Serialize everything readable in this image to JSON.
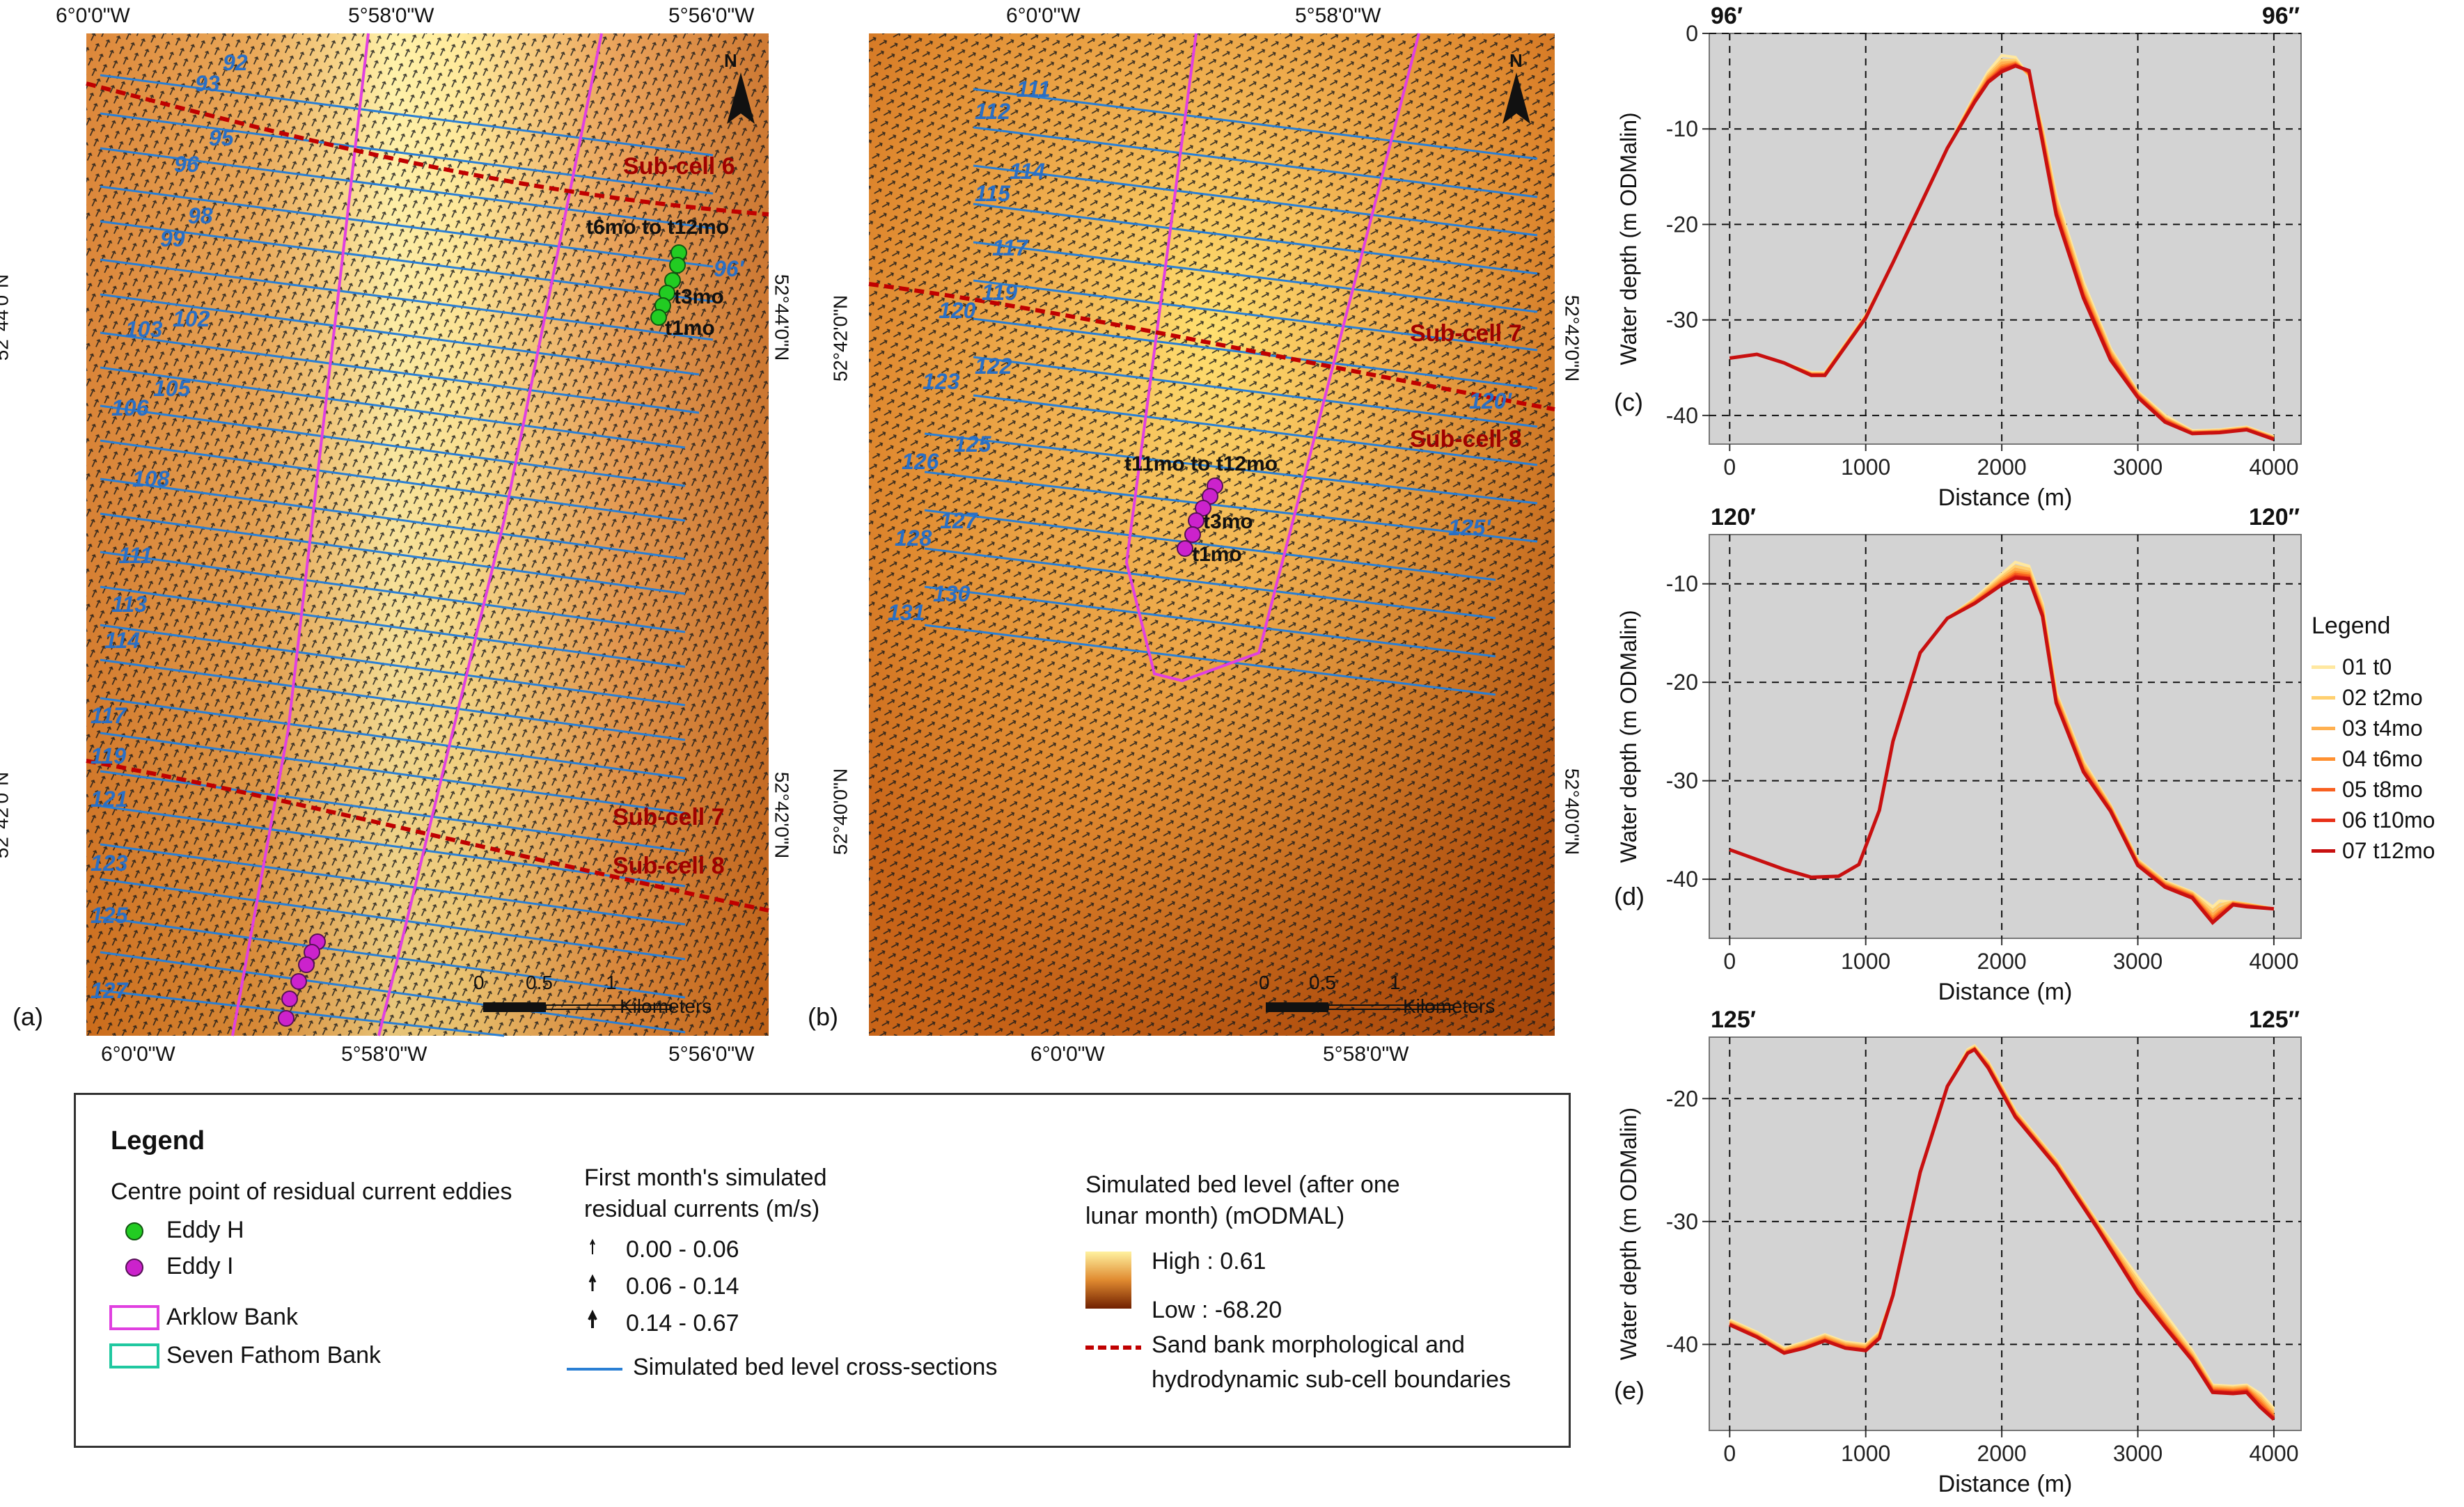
{
  "map_a": {
    "panel_label": "(a)",
    "lon_top": [
      "6°0'0\"W",
      "5°58'0\"W",
      "5°56'0\"W"
    ],
    "lon_bottom": [
      "6°0'0\"W",
      "5°58'0\"W",
      "5°56'0\"W"
    ],
    "lat_left": [
      "52°44'0\"N",
      "52°42'0\"N"
    ],
    "lat_right": [
      "52°44'0\"N",
      "52°42'0\"N"
    ],
    "section_labels": [
      "92",
      "93",
      "95",
      "96",
      "98",
      "99",
      "102",
      "103",
      "105",
      "106",
      "108",
      "111",
      "113",
      "114",
      "117",
      "119",
      "121",
      "123",
      "125",
      "127",
      "96'"
    ],
    "subcell_labels": [
      "Sub-cell 6",
      "Sub-cell 7",
      "Sub-cell 8"
    ],
    "eddy_labels": [
      "t6mo to t12mo",
      "t3mo",
      "t1mo"
    ],
    "north": "N",
    "scale_ticks": [
      "0",
      "0.5",
      "1"
    ],
    "scale_unit": "Kilometers"
  },
  "map_b": {
    "panel_label": "(b)",
    "lon_top": [
      "6°0'0\"W",
      "5°58'0\"W"
    ],
    "lon_bottom": [
      "6°0'0\"W",
      "5°58'0\"W"
    ],
    "lat_left": [
      "52°42'0\"N",
      "52°40'0\"N"
    ],
    "lat_right": [
      "52°42'0\"N",
      "52°40'0\"N"
    ],
    "section_labels": [
      "111",
      "112",
      "114",
      "115",
      "117",
      "119",
      "120",
      "122",
      "123",
      "125",
      "126",
      "127",
      "128",
      "130",
      "131",
      "120'",
      "125'"
    ],
    "subcell_labels": [
      "Sub-cell 7",
      "Sub-cell 8"
    ],
    "eddy_labels": [
      "t11mo to t12mo",
      "t3mo",
      "t1mo"
    ],
    "north": "N",
    "scale_ticks": [
      "0",
      "0.5",
      "1"
    ],
    "scale_unit": "Kilometers"
  },
  "legend": {
    "title": "Legend",
    "eddy_heading": "Centre point of residual current eddies",
    "eddy_h": "Eddy H",
    "eddy_i": "Eddy I",
    "arklow": "Arklow Bank",
    "seven_fathom": "Seven Fathom Bank",
    "current_heading_1": "First month's simulated",
    "current_heading_2": "residual currents (m/s)",
    "current_classes": [
      "0.00 - 0.06",
      "0.06 - 0.14",
      "0.14 - 0.67"
    ],
    "cross_sections": "Simulated bed level cross-sections",
    "bed_heading_1": "Simulated bed level (after one",
    "bed_heading_2": "lunar month) (mODMAL)",
    "high": "High : 0.61",
    "low": "Low : -68.20",
    "boundary_1": "Sand bank morphological and",
    "boundary_2": "hydrodynamic sub-cell boundaries"
  },
  "colors": {
    "arklow": "#e040e0",
    "seven_fathom": "#20c8a0",
    "eddy_h": "#22cc22",
    "eddy_i": "#cc22cc",
    "section_line": "#2a7fd4",
    "boundary": "#c00000",
    "map_dark": "#c85a10",
    "map_light": "#ffee80",
    "series": [
      "#ffe8a0",
      "#ffd070",
      "#ffb050",
      "#ff9030",
      "#f86020",
      "#e83018",
      "#c81010"
    ]
  },
  "profile_legend": {
    "title": "Legend",
    "items": [
      "01 t0",
      "02 t2mo",
      "03 t4mo",
      "04 t6mo",
      "05 t8mo",
      "06 t10mo",
      "07 t12mo"
    ]
  },
  "chart_data": [
    {
      "type": "line",
      "panel": "(c)",
      "left_label": "96′",
      "right_label": "96″",
      "xlabel": "Distance (m)",
      "ylabel": "Water depth (m ODMalin)",
      "xlim": [
        -150,
        4200
      ],
      "ylim": [
        -43,
        0
      ],
      "xticks": [
        0,
        1000,
        2000,
        3000,
        4000
      ],
      "yticks": [
        0,
        -10,
        -20,
        -30,
        -40
      ],
      "x": [
        0,
        200,
        400,
        600,
        700,
        800,
        1000,
        1200,
        1400,
        1600,
        1800,
        1900,
        2000,
        2100,
        2200,
        2300,
        2400,
        2600,
        2800,
        3000,
        3200,
        3400,
        3600,
        3800,
        4000
      ],
      "series": [
        {
          "name": "01 t0",
          "values": [
            -34,
            -33.6,
            -34.5,
            -35.5,
            -35.5,
            -33.5,
            -29.5,
            -24,
            -18,
            -12,
            -6.5,
            -4,
            -2.3,
            -2.5,
            -4.5,
            -10,
            -17,
            -26,
            -33,
            -37.5,
            -40,
            -41.6,
            -41.5,
            -41.2,
            -42.2
          ]
        },
        {
          "name": "02 t2mo",
          "values": [
            -34,
            -33.6,
            -34.5,
            -35.6,
            -35.6,
            -33.6,
            -29.6,
            -24,
            -18,
            -12,
            -6.7,
            -4.3,
            -2.8,
            -2.8,
            -4.4,
            -10.2,
            -17.4,
            -26.4,
            -33.2,
            -37.6,
            -40.2,
            -41.7,
            -41.6,
            -41.3,
            -42.3
          ]
        },
        {
          "name": "03 t4mo",
          "values": [
            -34,
            -33.6,
            -34.5,
            -35.6,
            -35.6,
            -33.6,
            -29.6,
            -24,
            -18,
            -12,
            -6.8,
            -4.5,
            -3.1,
            -3,
            -4.3,
            -10.5,
            -17.8,
            -26.7,
            -33.4,
            -37.7,
            -40.3,
            -41.7,
            -41.6,
            -41.3,
            -42.3
          ]
        },
        {
          "name": "04 t6mo",
          "values": [
            -34,
            -33.6,
            -34.5,
            -35.7,
            -35.7,
            -33.7,
            -29.7,
            -24,
            -18,
            -12,
            -6.9,
            -4.7,
            -3.4,
            -3.1,
            -4.2,
            -10.8,
            -18.2,
            -27,
            -33.6,
            -37.8,
            -40.4,
            -41.8,
            -41.7,
            -41.4,
            -42.4
          ]
        },
        {
          "name": "05 t8mo",
          "values": [
            -34,
            -33.6,
            -34.5,
            -35.7,
            -35.7,
            -33.7,
            -29.7,
            -24,
            -18,
            -12,
            -7,
            -4.9,
            -3.6,
            -3.2,
            -4.1,
            -11,
            -18.5,
            -27.3,
            -33.8,
            -37.9,
            -40.5,
            -41.8,
            -41.7,
            -41.4,
            -42.4
          ]
        },
        {
          "name": "06 t10mo",
          "values": [
            -34,
            -33.6,
            -34.5,
            -35.8,
            -35.8,
            -33.8,
            -29.8,
            -24,
            -18,
            -12,
            -7.1,
            -5,
            -3.8,
            -3.3,
            -4,
            -11.2,
            -18.8,
            -27.5,
            -34,
            -38,
            -40.6,
            -41.9,
            -41.8,
            -41.5,
            -42.5
          ]
        },
        {
          "name": "07 t12mo",
          "values": [
            -34,
            -33.6,
            -34.5,
            -35.8,
            -35.8,
            -33.8,
            -29.8,
            -24,
            -18,
            -12,
            -7.2,
            -5.1,
            -4,
            -3.4,
            -3.9,
            -11.4,
            -19,
            -27.7,
            -34.2,
            -38.1,
            -40.7,
            -41.9,
            -41.8,
            -41.5,
            -42.5
          ]
        }
      ]
    },
    {
      "type": "line",
      "panel": "(d)",
      "left_label": "120′",
      "right_label": "120″",
      "xlabel": "Distance (m)",
      "ylabel": "Water depth (m ODMalin)",
      "xlim": [
        -150,
        4200
      ],
      "ylim": [
        -46,
        -5
      ],
      "xticks": [
        0,
        1000,
        2000,
        3000,
        4000
      ],
      "yticks": [
        -10,
        -20,
        -30,
        -40
      ],
      "x": [
        0,
        200,
        400,
        600,
        800,
        950,
        1100,
        1200,
        1400,
        1600,
        1800,
        2000,
        2100,
        2200,
        2300,
        2400,
        2600,
        2800,
        3000,
        3200,
        3400,
        3550,
        3600,
        3700,
        3800,
        4000
      ],
      "series": [
        {
          "name": "01 t0",
          "values": [
            -37,
            -38,
            -39,
            -39.8,
            -39.7,
            -38.5,
            -33,
            -26,
            -17,
            -13.5,
            -11.5,
            -9,
            -7.8,
            -8.2,
            -12,
            -21,
            -28,
            -32.5,
            -38,
            -40.2,
            -41.3,
            -42.8,
            -42.2,
            -42.3,
            -42.5,
            -43
          ]
        },
        {
          "name": "02 t2mo",
          "values": [
            -37,
            -38,
            -39,
            -39.8,
            -39.7,
            -38.5,
            -33,
            -26,
            -17,
            -13.5,
            -11.6,
            -9.3,
            -8.2,
            -8.5,
            -12.3,
            -21.2,
            -28.2,
            -32.6,
            -38.1,
            -40.3,
            -41.4,
            -43.2,
            -42.6,
            -42.3,
            -42.5,
            -43
          ]
        },
        {
          "name": "03 t4mo",
          "values": [
            -37,
            -38,
            -39,
            -39.8,
            -39.7,
            -38.5,
            -33,
            -26,
            -17,
            -13.5,
            -11.7,
            -9.5,
            -8.5,
            -8.8,
            -12.6,
            -21.4,
            -28.4,
            -32.7,
            -38.2,
            -40.4,
            -41.5,
            -43.6,
            -43,
            -42.4,
            -42.6,
            -43
          ]
        },
        {
          "name": "04 t6mo",
          "values": [
            -37,
            -38,
            -39,
            -39.8,
            -39.7,
            -38.5,
            -33,
            -26,
            -17,
            -13.5,
            -11.8,
            -9.7,
            -8.8,
            -9,
            -12.8,
            -21.6,
            -28.6,
            -32.8,
            -38.3,
            -40.5,
            -41.6,
            -43.9,
            -43.3,
            -42.4,
            -42.6,
            -43
          ]
        },
        {
          "name": "05 t8mo",
          "values": [
            -37,
            -38,
            -39,
            -39.8,
            -39.7,
            -38.5,
            -33,
            -26,
            -17,
            -13.5,
            -11.9,
            -9.9,
            -9,
            -9.2,
            -13,
            -21.8,
            -28.8,
            -32.9,
            -38.4,
            -40.6,
            -41.7,
            -44.1,
            -43.5,
            -42.5,
            -42.7,
            -43
          ]
        },
        {
          "name": "06 t10mo",
          "values": [
            -37,
            -38,
            -39,
            -39.8,
            -39.7,
            -38.5,
            -33,
            -26,
            -17,
            -13.5,
            -12,
            -10,
            -9.2,
            -9.4,
            -13.2,
            -22,
            -29,
            -33,
            -38.5,
            -40.7,
            -41.8,
            -44.3,
            -43.7,
            -42.5,
            -42.7,
            -43
          ]
        },
        {
          "name": "07 t12mo",
          "values": [
            -37,
            -38,
            -39,
            -39.8,
            -39.7,
            -38.5,
            -33,
            -26,
            -17,
            -13.5,
            -12,
            -10.1,
            -9.4,
            -9.5,
            -13.3,
            -22.1,
            -29.1,
            -33.1,
            -38.6,
            -40.8,
            -41.9,
            -44.4,
            -43.8,
            -42.6,
            -42.8,
            -43
          ]
        }
      ]
    },
    {
      "type": "line",
      "panel": "(e)",
      "left_label": "125′",
      "right_label": "125″",
      "xlabel": "Distance (m)",
      "ylabel": "Water depth (m ODMalin)",
      "xlim": [
        -150,
        4200
      ],
      "ylim": [
        -47,
        -15
      ],
      "xticks": [
        0,
        1000,
        2000,
        3000,
        4000
      ],
      "yticks": [
        -20,
        -30,
        -40
      ],
      "x": [
        0,
        200,
        400,
        550,
        700,
        850,
        1000,
        1100,
        1200,
        1400,
        1600,
        1750,
        1800,
        1900,
        2100,
        2400,
        2700,
        3000,
        3200,
        3400,
        3550,
        3700,
        3800,
        3900,
        4000
      ],
      "series": [
        {
          "name": "01 t0",
          "values": [
            -38,
            -39,
            -40.3,
            -39.8,
            -39.2,
            -39.8,
            -40,
            -39,
            -36,
            -26,
            -19,
            -16,
            -15.7,
            -17,
            -21,
            -25,
            -30,
            -34.5,
            -37.5,
            -40.5,
            -43.3,
            -43.4,
            -43.3,
            -44,
            -45.2
          ]
        },
        {
          "name": "02 t2mo",
          "values": [
            -38.1,
            -39.1,
            -40.4,
            -39.9,
            -39.3,
            -39.9,
            -40.1,
            -39.1,
            -36,
            -26,
            -19,
            -16.1,
            -15.8,
            -17.1,
            -21.1,
            -25.1,
            -30.1,
            -34.8,
            -37.8,
            -40.7,
            -43.4,
            -43.5,
            -43.4,
            -44.2,
            -45.4
          ]
        },
        {
          "name": "03 t4mo",
          "values": [
            -38.2,
            -39.2,
            -40.5,
            -40,
            -39.4,
            -40,
            -40.2,
            -39.2,
            -36,
            -26,
            -19,
            -16.2,
            -15.9,
            -17.2,
            -21.2,
            -25.2,
            -30.2,
            -35.1,
            -38,
            -40.9,
            -43.5,
            -43.6,
            -43.5,
            -44.4,
            -45.6
          ]
        },
        {
          "name": "04 t6mo",
          "values": [
            -38.3,
            -39.3,
            -40.6,
            -40.1,
            -39.5,
            -40.1,
            -40.3,
            -39.3,
            -36,
            -26,
            -19,
            -16.2,
            -15.9,
            -17.3,
            -21.3,
            -25.3,
            -30.3,
            -35.4,
            -38.2,
            -41,
            -43.6,
            -43.7,
            -43.6,
            -44.6,
            -45.8
          ]
        },
        {
          "name": "05 t8mo",
          "values": [
            -38.3,
            -39.3,
            -40.6,
            -40.2,
            -39.6,
            -40.2,
            -40.4,
            -39.4,
            -36,
            -26,
            -19,
            -16.3,
            -16,
            -17.4,
            -21.4,
            -25.4,
            -30.4,
            -35.6,
            -38.4,
            -41.1,
            -43.7,
            -43.8,
            -43.7,
            -44.8,
            -45.9
          ]
        },
        {
          "name": "06 t10mo",
          "values": [
            -38.4,
            -39.4,
            -40.7,
            -40.3,
            -39.7,
            -40.3,
            -40.5,
            -39.5,
            -36,
            -26,
            -19,
            -16.3,
            -16,
            -17.4,
            -21.4,
            -25.4,
            -30.4,
            -35.7,
            -38.5,
            -41.2,
            -43.8,
            -43.9,
            -43.8,
            -45,
            -46
          ]
        },
        {
          "name": "07 t12mo",
          "values": [
            -38.4,
            -39.4,
            -40.7,
            -40.3,
            -39.7,
            -40.3,
            -40.5,
            -39.5,
            -36,
            -26,
            -19,
            -16.3,
            -16,
            -17.5,
            -21.5,
            -25.5,
            -30.5,
            -35.8,
            -38.6,
            -41.3,
            -43.9,
            -44,
            -43.9,
            -45.1,
            -46.1
          ]
        }
      ]
    }
  ]
}
